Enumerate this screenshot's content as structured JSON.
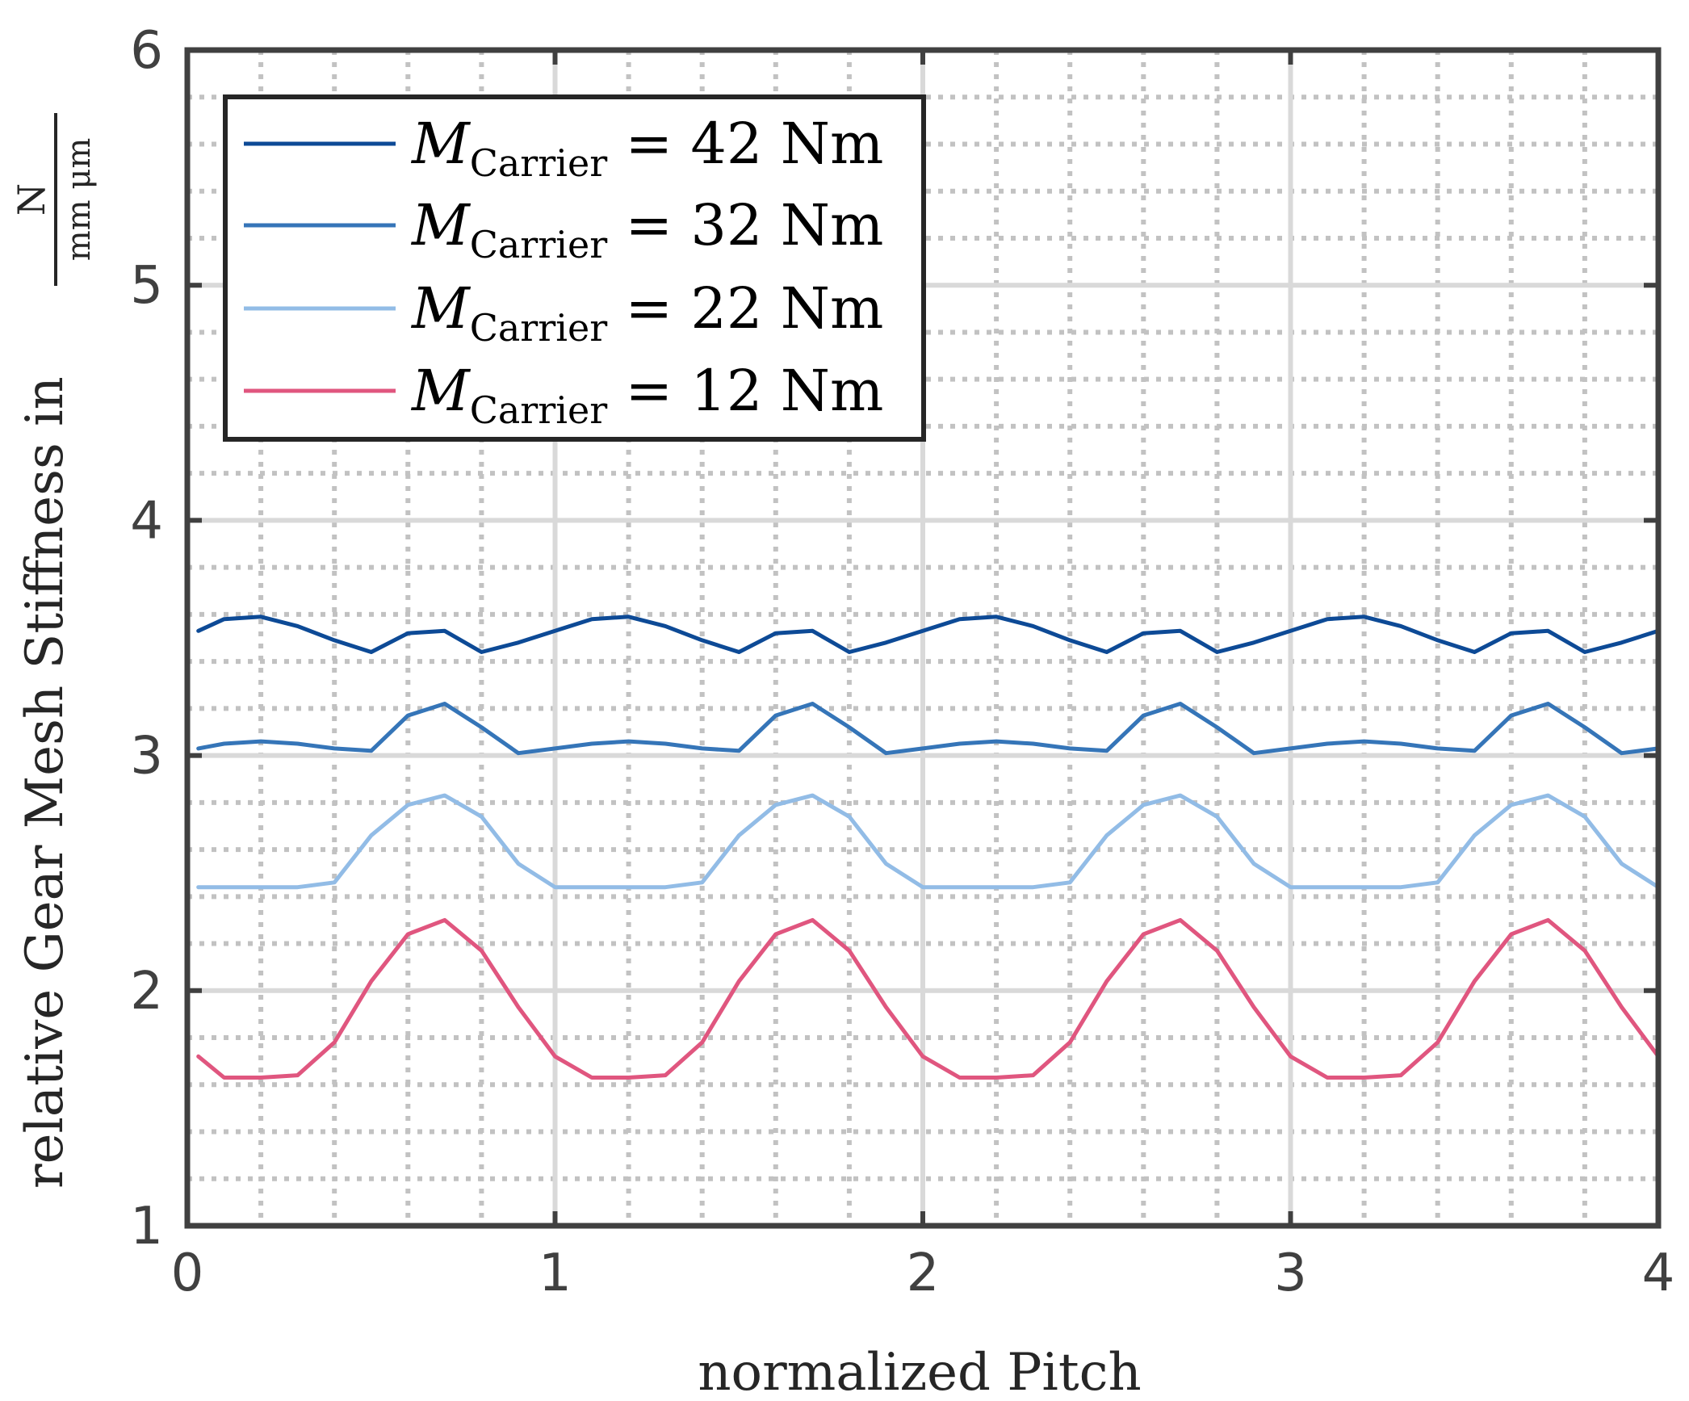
{
  "chart_data": {
    "type": "line",
    "xlabel": "normalized Pitch",
    "ylabel": "relative Gear Mesh Stiffness in",
    "ylabel_unit": {
      "numerator": "N",
      "denominator": "mm μm"
    },
    "xlim": [
      0,
      4
    ],
    "ylim": [
      1,
      6
    ],
    "x_ticks": [
      "0",
      "1",
      "2",
      "3",
      "4"
    ],
    "y_ticks": [
      "1",
      "2",
      "3",
      "4",
      "5",
      "6"
    ],
    "x_tick_values": [
      0,
      1,
      2,
      3,
      4
    ],
    "y_tick_values": [
      1,
      2,
      3,
      4,
      5,
      6
    ],
    "grid": "major solid, minor dotted",
    "legend_position": "top-left",
    "x": [
      0.03,
      0.1,
      0.2,
      0.3,
      0.4,
      0.5,
      0.6,
      0.7,
      0.8,
      0.9,
      1.0
    ],
    "series": [
      {
        "name": "42 Nm",
        "label_symbol": "M",
        "label_subscript": "Carrier",
        "label_rest": " = 42 Nm",
        "color": "#0d4a96",
        "values": [
          3.53,
          3.58,
          3.59,
          3.55,
          3.49,
          3.44,
          3.52,
          3.53,
          3.44,
          3.48,
          3.53
        ]
      },
      {
        "name": "32 Nm",
        "label_symbol": "M",
        "label_subscript": "Carrier",
        "label_rest": " = 32 Nm",
        "color": "#3575b8",
        "values": [
          3.03,
          3.05,
          3.06,
          3.05,
          3.03,
          3.02,
          3.17,
          3.22,
          3.12,
          3.01,
          3.03
        ]
      },
      {
        "name": "22 Nm",
        "label_symbol": "M",
        "label_subscript": "Carrier",
        "label_rest": " = 22 Nm",
        "color": "#92bce6",
        "values": [
          2.44,
          2.44,
          2.44,
          2.44,
          2.46,
          2.66,
          2.79,
          2.83,
          2.74,
          2.54,
          2.44
        ]
      },
      {
        "name": "12 Nm",
        "label_symbol": "M",
        "label_subscript": "Carrier",
        "label_rest": " = 12 Nm",
        "color": "#e0567f",
        "values": [
          1.72,
          1.63,
          1.63,
          1.64,
          1.78,
          2.04,
          2.24,
          2.3,
          2.17,
          1.93,
          1.72
        ]
      }
    ]
  }
}
